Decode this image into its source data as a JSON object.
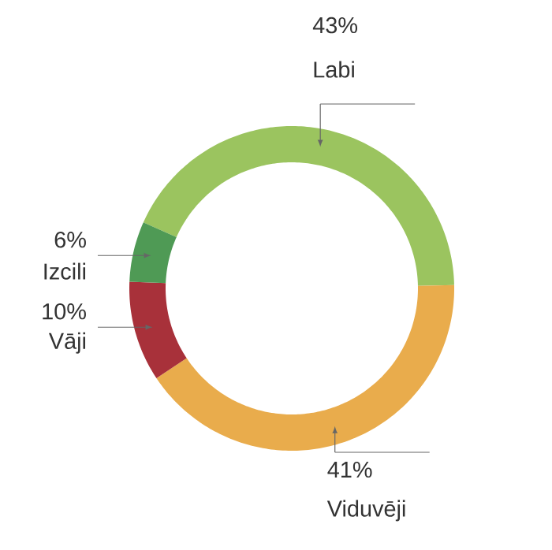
{
  "chart_data": {
    "type": "donut",
    "categories": [
      "Labi",
      "Viduvēji",
      "Vāji",
      "Izcili"
    ],
    "values": [
      43,
      41,
      10,
      6
    ],
    "colors": [
      "#9bc45f",
      "#e9ac4c",
      "#a8313a",
      "#4f9a55"
    ],
    "value_labels": [
      "43%",
      "41%",
      "10%",
      "6%"
    ]
  }
}
